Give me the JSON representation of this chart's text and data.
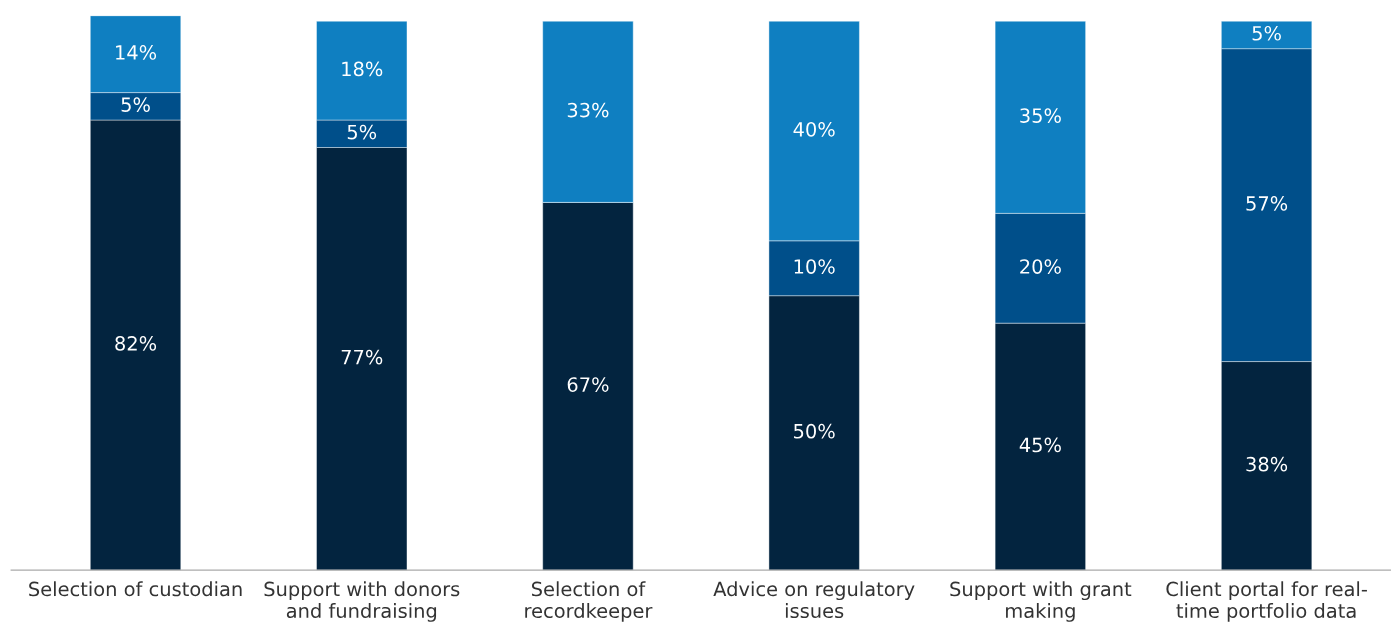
{
  "chart_data": {
    "type": "bar",
    "stacked": true,
    "grid": false,
    "categories": [
      "Selection of custodian",
      "Support with donors\nand fundraising",
      "Selection of\nrecordkeeper",
      "Advice on regulatory\nissues",
      "Support with grant\nmaking",
      "Client portal for real-\ntime portfolio data"
    ],
    "series": [
      {
        "color": "#03243f",
        "values": [
          82,
          77,
          67,
          50,
          45,
          38
        ],
        "value_labels": [
          "82%",
          "77%",
          "67%",
          "50%",
          "45%",
          "38%"
        ]
      },
      {
        "color": "#004f8a",
        "values": [
          5,
          5,
          null,
          10,
          20,
          57
        ],
        "value_labels": [
          "5%",
          "5%",
          null,
          "10%",
          "20%",
          "57%"
        ]
      },
      {
        "color": "#0f7fc1",
        "values": [
          14,
          18,
          33,
          40,
          35,
          5
        ],
        "value_labels": [
          "14%",
          "18%",
          "33%",
          "40%",
          "35%",
          "5%"
        ]
      }
    ]
  }
}
